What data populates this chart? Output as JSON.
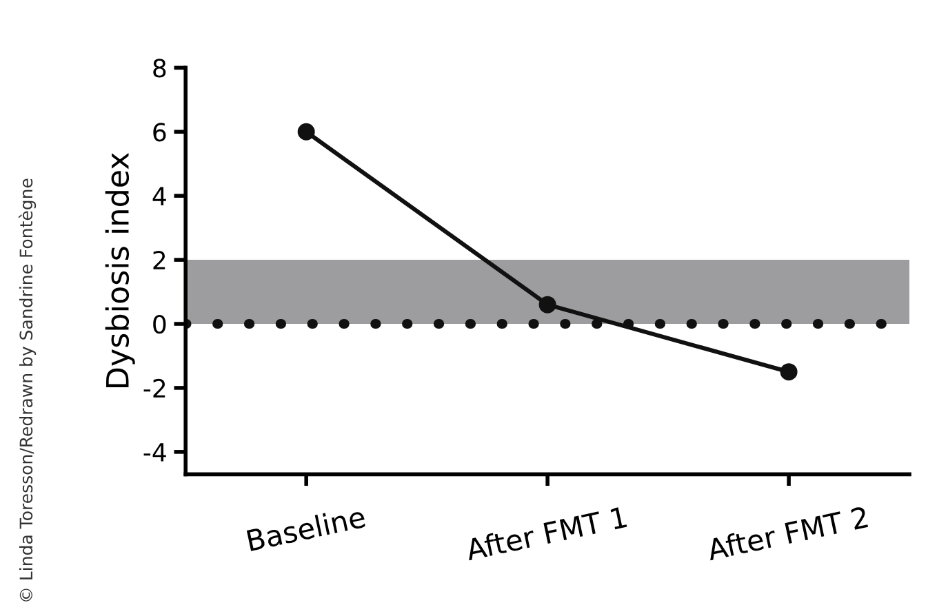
{
  "chart_data": {
    "type": "line",
    "ylabel": "Dysbiosis index",
    "categories": [
      "Baseline",
      "After FMT 1",
      "After FMT 2"
    ],
    "series": [
      {
        "color": "#111111",
        "values": [
          6,
          0.6,
          -1.5
        ]
      }
    ],
    "ylim": [
      -4.7,
      8
    ],
    "yticks": [
      -4,
      -2,
      0,
      2,
      4,
      6,
      8
    ],
    "marker": "circle",
    "line_style": "solid",
    "grid": false,
    "legend": false,
    "ref_lines": [
      {
        "axis": "y",
        "value": 0,
        "color": "#111111",
        "line_style": "dotted"
      }
    ],
    "bands": [
      {
        "axis": "y",
        "from": 0,
        "to": 2,
        "color": "#9d9d9f"
      }
    ],
    "annotations": [
      "© Linda Toresson/Redrawn by Sandrine Fontègne"
    ]
  }
}
